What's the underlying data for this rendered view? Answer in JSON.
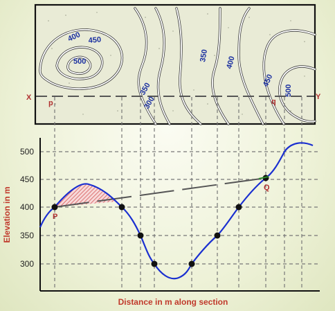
{
  "map": {
    "contour_labels": [
      "400",
      "450",
      "500",
      "350",
      "300",
      "350",
      "400",
      "450",
      "500"
    ],
    "section_start": "X",
    "section_end": "Y",
    "point_p": "p",
    "point_q": "q"
  },
  "profile": {
    "y_axis_label": "Elevation in m",
    "x_axis_label": "Distance in m along section",
    "y_ticks": [
      "500",
      "450",
      "400",
      "350",
      "300"
    ],
    "point_P": "P",
    "point_Q": "Q"
  },
  "colors": {
    "profile_line": "#1a2fd0",
    "label_red": "#c0392b",
    "shade": "#e07070",
    "contour_text": "#1a2fa0"
  },
  "chart_data": {
    "type": "line",
    "ylabel": "Elevation in m",
    "xlabel": "Distance in m along section",
    "y_ticks": [
      500,
      450,
      400,
      350,
      300
    ],
    "ylim": [
      280,
      520
    ]
  }
}
